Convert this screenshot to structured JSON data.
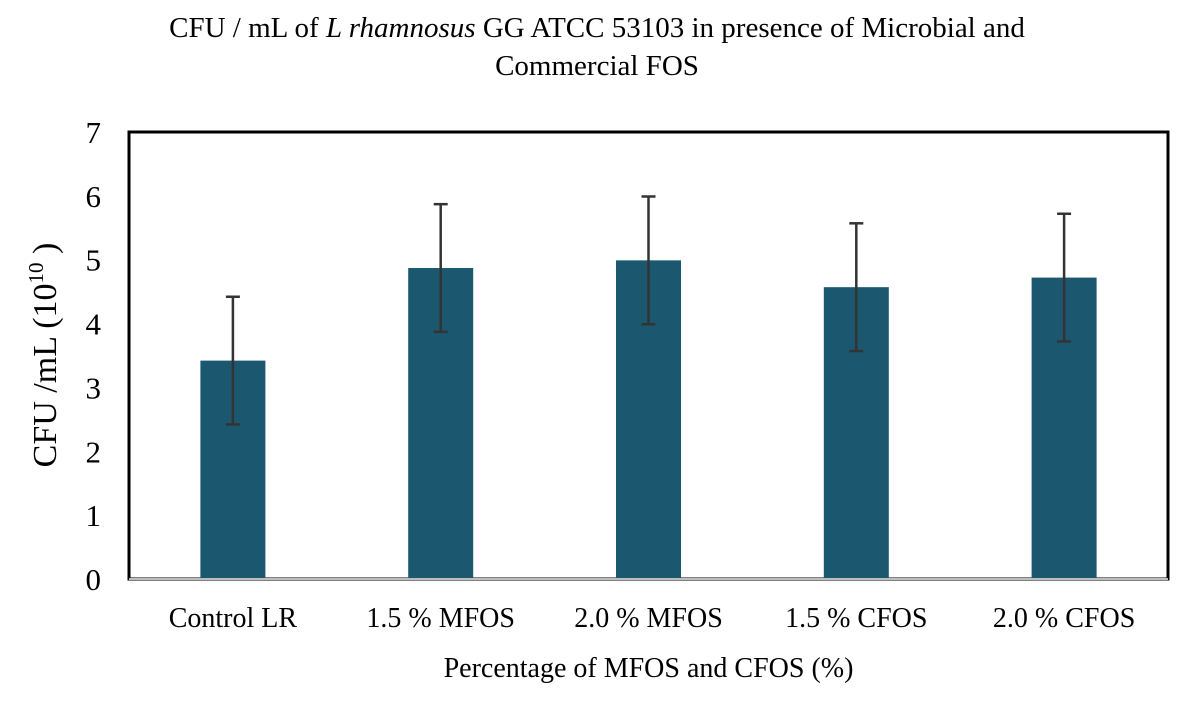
{
  "chart_data": {
    "type": "bar",
    "title": {
      "line1_prefix": "CFU / mL of ",
      "line1_italic": "L rhamnosus",
      "line1_suffix": " GG ATCC 53103 in presence of Microbial and",
      "line2": "Commercial FOS"
    },
    "categories": [
      "Control LR",
      "1.5 % MFOS",
      "2.0 % MFOS",
      "1.5 % CFOS",
      "2.0 % CFOS"
    ],
    "values": [
      3.42,
      4.87,
      4.99,
      4.57,
      4.72
    ],
    "error": [
      1.0,
      1.0,
      1.0,
      1.0,
      1.0
    ],
    "xlabel": "Percentage of MFOS and CFOS (%)",
    "ylabel": {
      "main": "CFU /mL (10",
      "sup": "10",
      "end": " )"
    },
    "ylim": [
      0,
      7
    ],
    "yticks": [
      0,
      1,
      2,
      3,
      4,
      5,
      6,
      7
    ],
    "bar_color": "#1b5870",
    "error_color": "#333333",
    "grid": false
  }
}
